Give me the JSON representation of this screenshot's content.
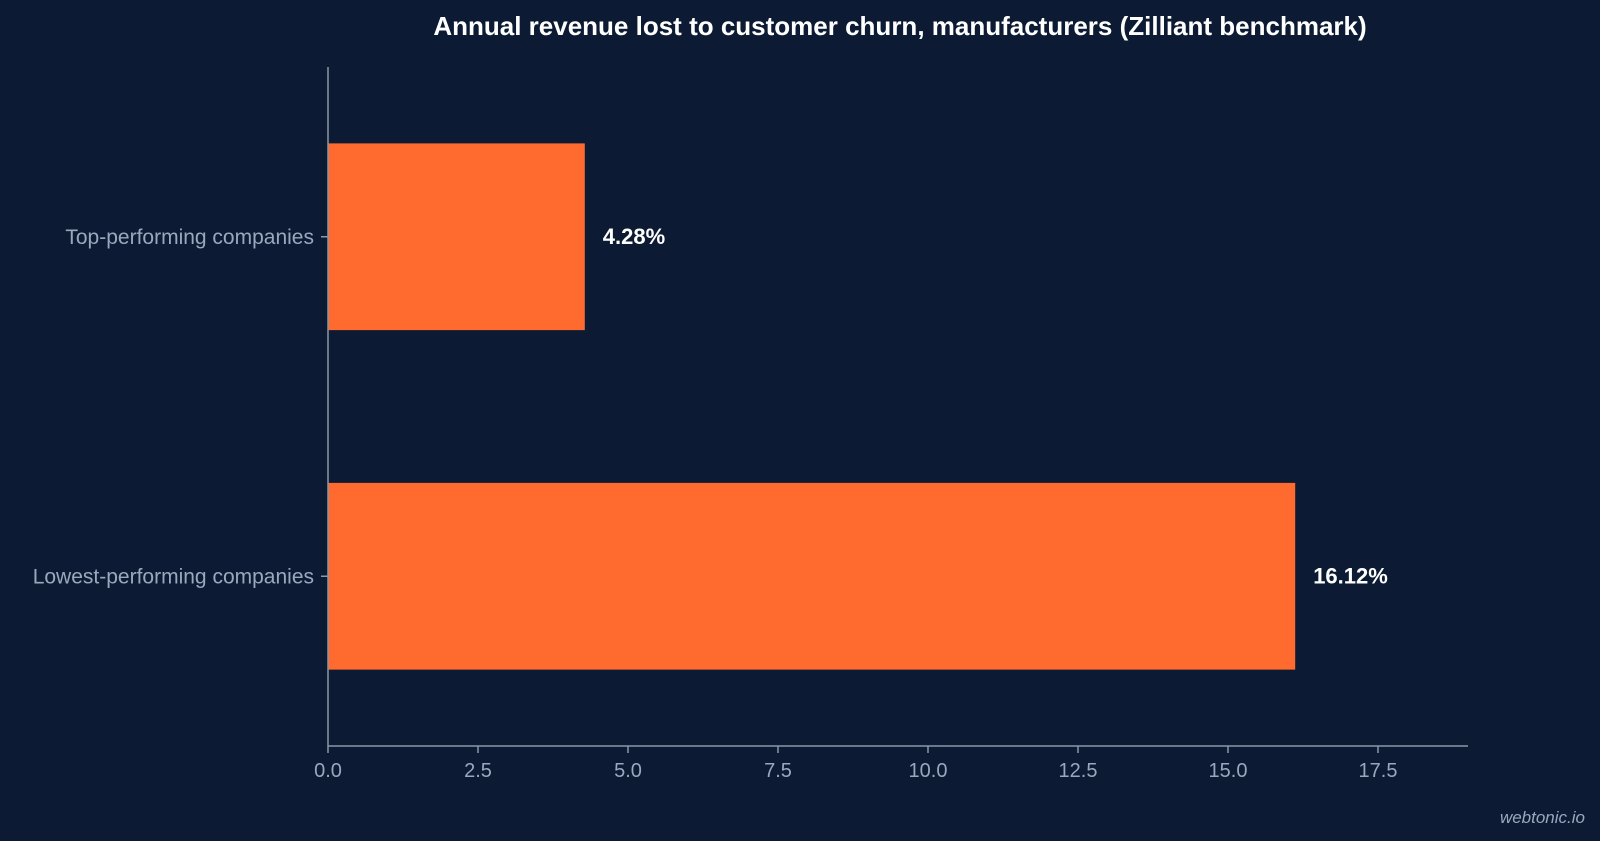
{
  "chart_data": {
    "type": "bar",
    "orientation": "horizontal",
    "title": "Annual revenue lost to customer churn, manufacturers (Zilliant benchmark)",
    "xlabel": "",
    "ylabel": "",
    "categories": [
      "Top-performing companies",
      "Lowest-performing companies"
    ],
    "values": [
      4.28,
      16.12
    ],
    "value_labels": [
      "4.28%",
      "16.12%"
    ],
    "xlim": [
      0,
      19
    ],
    "xticks": [
      0.0,
      2.5,
      5.0,
      7.5,
      10.0,
      12.5,
      15.0,
      17.5
    ],
    "xtick_labels": [
      "0.0",
      "2.5",
      "5.0",
      "7.5",
      "10.0",
      "12.5",
      "15.0",
      "17.5"
    ],
    "grid": false,
    "colors": {
      "background": "#0c1b33",
      "bar": "#ff6b2e",
      "axis": "#8c97a8",
      "label": "#9aa8bd",
      "value": "#ffffff"
    }
  },
  "watermark": "webtonic.io"
}
